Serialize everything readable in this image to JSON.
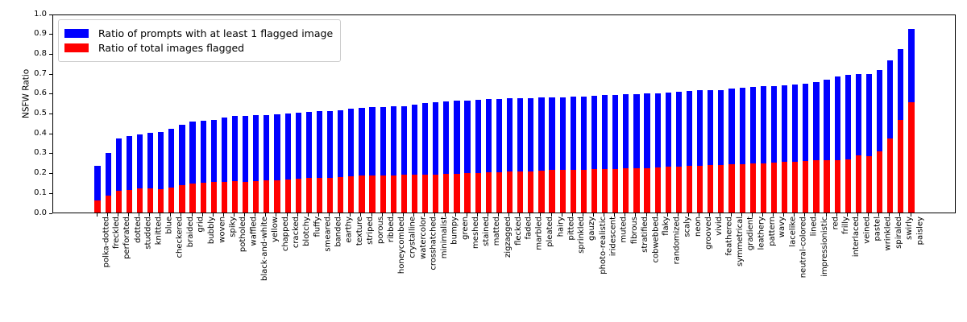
{
  "chart_data": {
    "type": "bar",
    "mode": "overlay",
    "title": "",
    "xlabel": "",
    "ylabel": "NSFW Ratio",
    "ylim": [
      0,
      1.0
    ],
    "ytick_labels": [
      "0.0",
      "0.1",
      "0.2",
      "0.3",
      "0.4",
      "0.5",
      "0.6",
      "0.7",
      "0.8",
      "0.9",
      "1.0"
    ],
    "grid": false,
    "legend_position": "upper left",
    "categories": [
      "polka-dotted",
      "freckled",
      "perforated",
      "dotted",
      "studded",
      "knitted",
      "blue",
      "checkered",
      "braided",
      "grid",
      "bubbly",
      "woven",
      "spiky",
      "potholed",
      "waffled",
      "black-and-white",
      "yellow",
      "chapped",
      "cracked",
      "blotchy",
      "fluffy",
      "smeared",
      "banded",
      "earthy",
      "texture",
      "striped",
      "porous",
      "ribbed",
      "honeycombed",
      "crystalline",
      "watercolor",
      "crosshatched",
      "minimalist",
      "bumpy",
      "green",
      "meshed",
      "stained",
      "matted",
      "zigzagged",
      "flecked",
      "faded",
      "marbled",
      "pleated",
      "hairy",
      "pitted",
      "sprinkled",
      "gauzy",
      "photo-realistic",
      "iridescent",
      "muted",
      "fibrous",
      "stratified",
      "cobwebbed",
      "flaky",
      "randomized",
      "scaly",
      "neon",
      "grooved",
      "vivid",
      "feathered",
      "symmetrical",
      "gradient",
      "leathery",
      "pattern",
      "wavy",
      "lacelike",
      "neutral-colored",
      "lined",
      "impressionistic",
      "red",
      "frilly",
      "interlaced",
      "veined",
      "pastel",
      "wrinkled",
      "spiraled",
      "swirly",
      "paisley"
    ],
    "series": [
      {
        "name": "Ratio of prompts with at least 1 flagged image",
        "color": "#0000ff",
        "values": [
          0.235,
          0.3,
          0.375,
          0.385,
          0.395,
          0.402,
          0.405,
          0.42,
          0.442,
          0.46,
          0.462,
          0.466,
          0.477,
          0.485,
          0.487,
          0.49,
          0.492,
          0.493,
          0.499,
          0.504,
          0.508,
          0.509,
          0.51,
          0.514,
          0.524,
          0.528,
          0.53,
          0.532,
          0.534,
          0.536,
          0.543,
          0.553,
          0.556,
          0.561,
          0.564,
          0.565,
          0.568,
          0.57,
          0.572,
          0.574,
          0.575,
          0.576,
          0.578,
          0.58,
          0.581,
          0.583,
          0.585,
          0.587,
          0.59,
          0.592,
          0.594,
          0.597,
          0.6,
          0.602,
          0.605,
          0.608,
          0.612,
          0.615,
          0.617,
          0.618,
          0.624,
          0.628,
          0.633,
          0.635,
          0.638,
          0.641,
          0.644,
          0.65,
          0.655,
          0.67,
          0.687,
          0.693,
          0.697,
          0.698,
          0.717,
          0.766,
          0.824,
          0.923
        ]
      },
      {
        "name": "Ratio of total images flagged",
        "color": "#ff0000",
        "values": [
          0.061,
          0.085,
          0.108,
          0.112,
          0.122,
          0.122,
          0.119,
          0.125,
          0.139,
          0.145,
          0.15,
          0.153,
          0.155,
          0.158,
          0.156,
          0.159,
          0.162,
          0.162,
          0.166,
          0.17,
          0.175,
          0.176,
          0.176,
          0.18,
          0.182,
          0.185,
          0.186,
          0.188,
          0.186,
          0.19,
          0.192,
          0.19,
          0.192,
          0.196,
          0.196,
          0.198,
          0.199,
          0.202,
          0.203,
          0.205,
          0.206,
          0.207,
          0.21,
          0.213,
          0.214,
          0.214,
          0.215,
          0.217,
          0.219,
          0.22,
          0.222,
          0.223,
          0.225,
          0.226,
          0.23,
          0.232,
          0.234,
          0.236,
          0.239,
          0.24,
          0.242,
          0.244,
          0.246,
          0.249,
          0.252,
          0.254,
          0.256,
          0.259,
          0.262,
          0.263,
          0.265,
          0.266,
          0.288,
          0.285,
          0.307,
          0.375,
          0.466,
          0.555
        ]
      }
    ]
  }
}
